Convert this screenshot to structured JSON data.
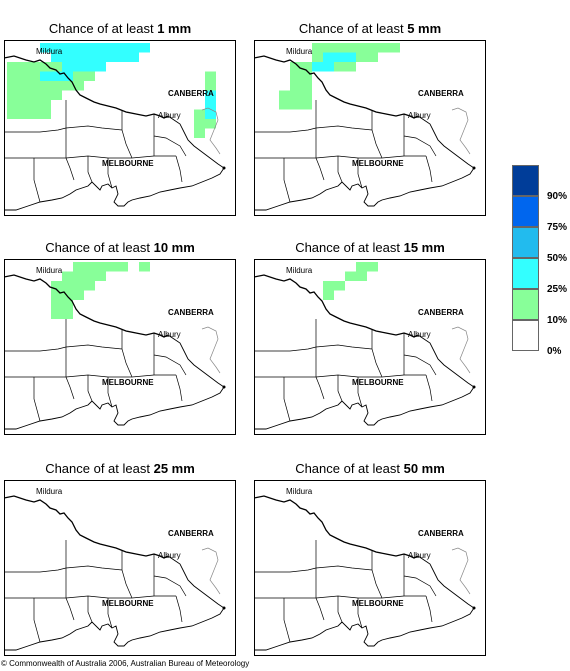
{
  "panels": [
    {
      "title_prefix": "Chance of at least ",
      "amount": "1 mm",
      "shading": [
        {
          "cells": [
            [
              0,
              2
            ],
            [
              1,
              2
            ],
            [
              2,
              2
            ],
            [
              3,
              2
            ],
            [
              4,
              2
            ],
            [
              5,
              2
            ],
            [
              6,
              2
            ],
            [
              7,
              2
            ],
            [
              8,
              2
            ],
            [
              0,
              3
            ],
            [
              1,
              3
            ],
            [
              2,
              3
            ],
            [
              3,
              3
            ],
            [
              4,
              3
            ],
            [
              5,
              3
            ],
            [
              6,
              3
            ],
            [
              7,
              3
            ],
            [
              0,
              4
            ],
            [
              1,
              4
            ],
            [
              2,
              4
            ],
            [
              3,
              4
            ],
            [
              4,
              4
            ],
            [
              5,
              4
            ],
            [
              6,
              4
            ],
            [
              0,
              5
            ],
            [
              1,
              5
            ],
            [
              2,
              5
            ],
            [
              3,
              5
            ],
            [
              4,
              5
            ],
            [
              0,
              6
            ],
            [
              1,
              6
            ],
            [
              2,
              6
            ],
            [
              3,
              6
            ],
            [
              0,
              7
            ],
            [
              1,
              7
            ],
            [
              2,
              7
            ],
            [
              3,
              7
            ],
            [
              18,
              3
            ],
            [
              18,
              4
            ],
            [
              18,
              5
            ],
            [
              18,
              6
            ],
            [
              17,
              7
            ],
            [
              18,
              7
            ],
            [
              17,
              8
            ],
            [
              18,
              8
            ],
            [
              17,
              9
            ]
          ],
          "class": "10-25%"
        },
        {
          "cells": [
            [
              3,
              0
            ],
            [
              4,
              0
            ],
            [
              5,
              0
            ],
            [
              6,
              0
            ],
            [
              7,
              0
            ],
            [
              8,
              0
            ],
            [
              9,
              0
            ],
            [
              10,
              0
            ],
            [
              11,
              0
            ],
            [
              12,
              0
            ],
            [
              4,
              1
            ],
            [
              5,
              1
            ],
            [
              6,
              1
            ],
            [
              7,
              1
            ],
            [
              8,
              1
            ],
            [
              9,
              1
            ],
            [
              10,
              1
            ],
            [
              11,
              1
            ],
            [
              5,
              2
            ],
            [
              6,
              2
            ],
            [
              7,
              2
            ],
            [
              8,
              2
            ],
            [
              3,
              3
            ],
            [
              4,
              3
            ],
            [
              5,
              3
            ],
            [
              18,
              5
            ],
            [
              18,
              6
            ],
            [
              18,
              7
            ]
          ],
          "class": "25-50%"
        }
      ]
    },
    {
      "title_prefix": "Chance of at least ",
      "amount": "5 mm",
      "shading": [
        {
          "cells": [
            [
              5,
              0
            ],
            [
              6,
              0
            ],
            [
              7,
              0
            ],
            [
              8,
              0
            ],
            [
              9,
              0
            ],
            [
              10,
              0
            ],
            [
              11,
              0
            ],
            [
              12,
              0
            ],
            [
              5,
              1
            ],
            [
              6,
              1
            ],
            [
              7,
              1
            ],
            [
              8,
              1
            ],
            [
              9,
              1
            ],
            [
              10,
              1
            ],
            [
              5,
              2
            ],
            [
              6,
              2
            ],
            [
              7,
              2
            ],
            [
              8,
              2
            ],
            [
              3,
              2
            ],
            [
              4,
              2
            ],
            [
              3,
              3
            ],
            [
              4,
              3
            ],
            [
              3,
              4
            ],
            [
              4,
              4
            ],
            [
              2,
              5
            ],
            [
              3,
              5
            ],
            [
              4,
              5
            ],
            [
              2,
              6
            ],
            [
              3,
              6
            ],
            [
              4,
              6
            ]
          ],
          "class": "10-25%"
        },
        {
          "cells": [
            [
              6,
              1
            ],
            [
              7,
              1
            ],
            [
              8,
              1
            ],
            [
              5,
              2
            ],
            [
              6,
              2
            ]
          ],
          "class": "25-50%"
        }
      ]
    },
    {
      "title_prefix": "Chance of at least ",
      "amount": "10 mm",
      "shading": [
        {
          "cells": [
            [
              6,
              0
            ],
            [
              7,
              0
            ],
            [
              8,
              0
            ],
            [
              9,
              0
            ],
            [
              10,
              0
            ],
            [
              5,
              1
            ],
            [
              6,
              1
            ],
            [
              7,
              1
            ],
            [
              8,
              1
            ],
            [
              4,
              2
            ],
            [
              5,
              2
            ],
            [
              6,
              2
            ],
            [
              7,
              2
            ],
            [
              4,
              3
            ],
            [
              5,
              3
            ],
            [
              6,
              3
            ],
            [
              4,
              4
            ],
            [
              5,
              4
            ],
            [
              4,
              5
            ],
            [
              5,
              5
            ],
            [
              12,
              0
            ]
          ],
          "class": "10-25%"
        }
      ]
    },
    {
      "title_prefix": "Chance of at least ",
      "amount": "15 mm",
      "shading": [
        {
          "cells": [
            [
              9,
              0
            ],
            [
              10,
              0
            ],
            [
              8,
              1
            ],
            [
              9,
              1
            ],
            [
              6,
              2
            ],
            [
              7,
              2
            ],
            [
              6,
              3
            ]
          ],
          "class": "10-25%"
        }
      ]
    },
    {
      "title_prefix": "Chance of at least ",
      "amount": "25 mm",
      "shading": []
    },
    {
      "title_prefix": "Chance of at least ",
      "amount": "50 mm",
      "shading": []
    }
  ],
  "map_labels": {
    "mildura": "Mildura",
    "canberra": "CANBERRA",
    "albury": "Albury",
    "melbourne": "MELBOURNE"
  },
  "legend": {
    "colors": [
      "#003d99",
      "#0066ee",
      "#22bbee",
      "#33ffff",
      "#88ff99",
      "#ffffff"
    ],
    "labels": [
      "90%",
      "75%",
      "50%",
      "25%",
      "10%",
      "0%"
    ]
  },
  "shading_colors": {
    "10-25%": "#88ff99",
    "25-50%": "#33ffff"
  },
  "copyright": "© Commonwealth of Australia 2006, Australian Bureau of Meteorology"
}
